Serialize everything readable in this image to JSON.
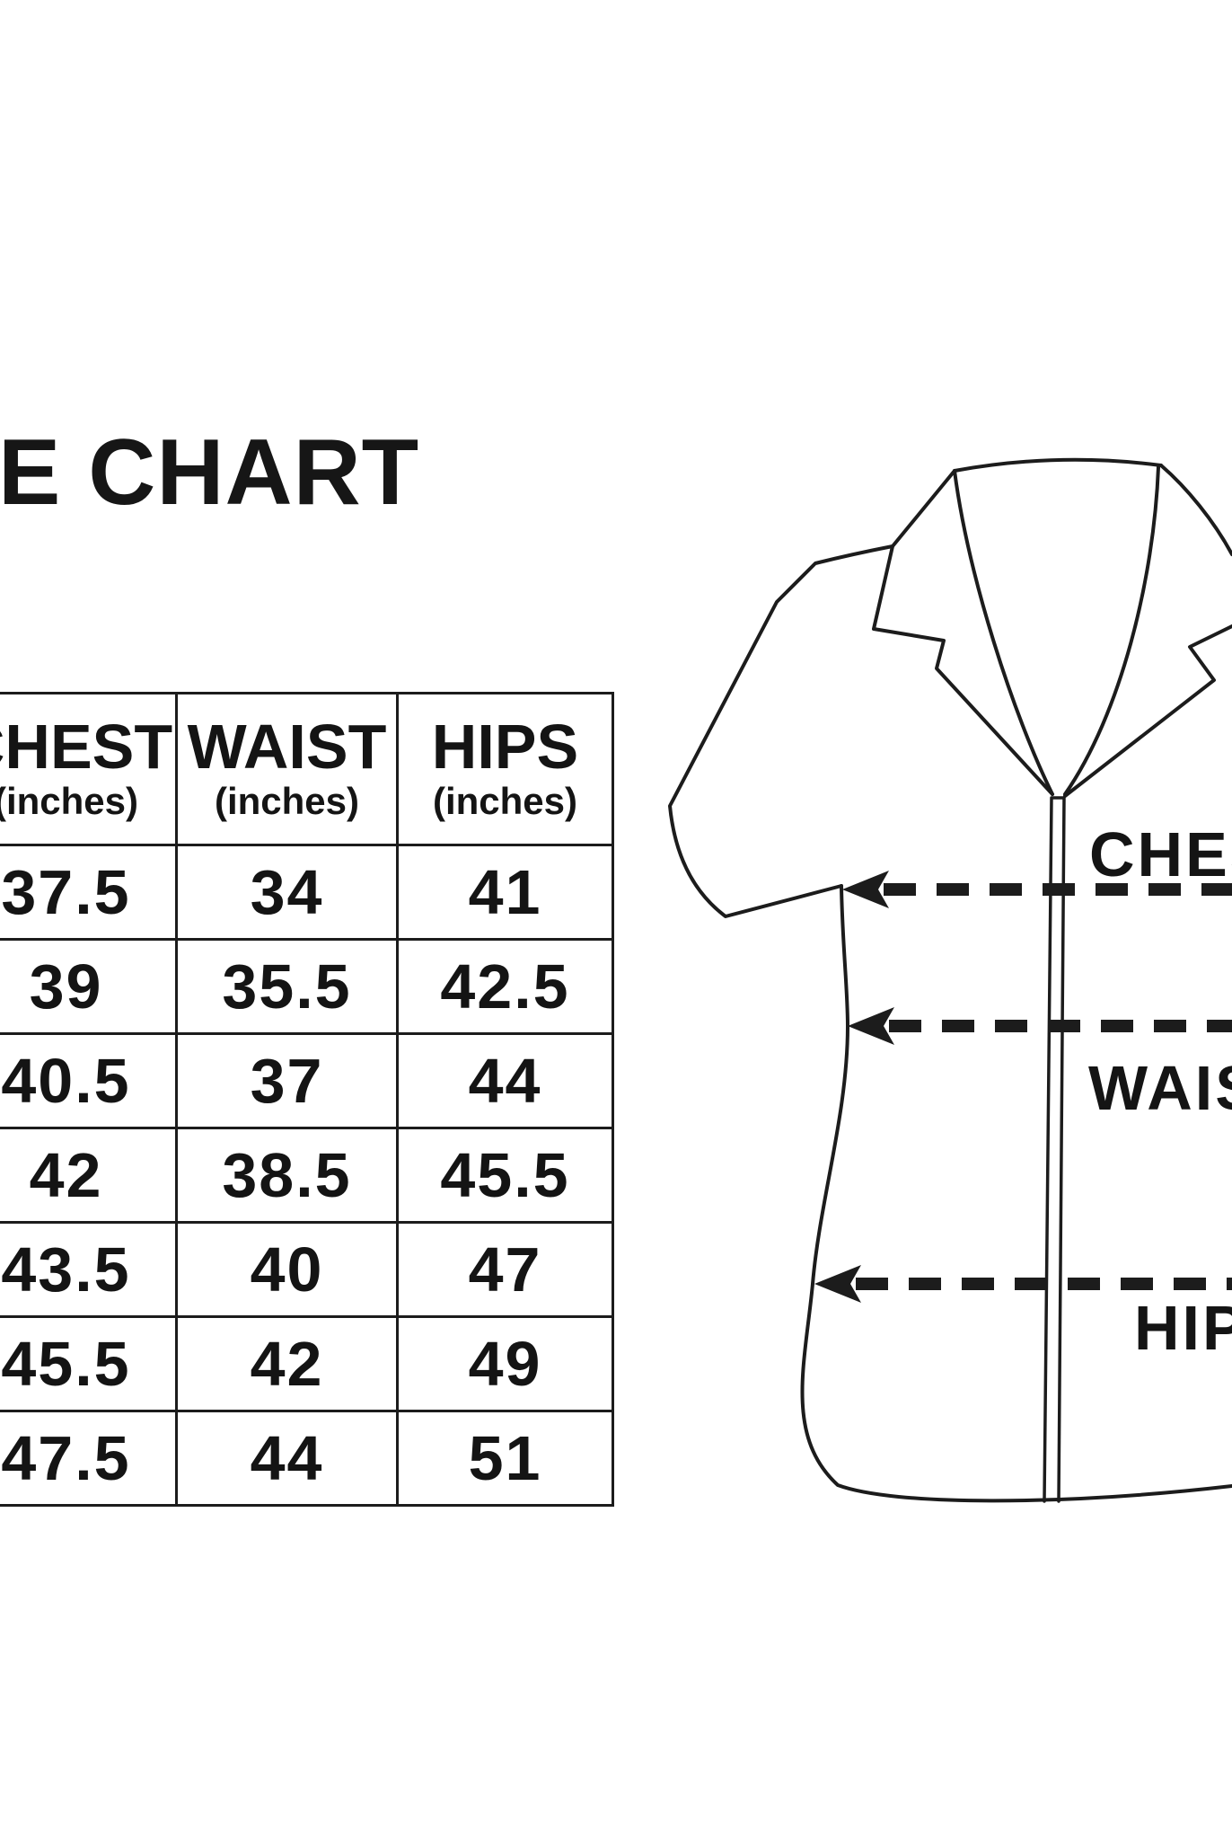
{
  "page": {
    "background": "#ffffff",
    "ink": "#1c1c1c"
  },
  "title": {
    "visible_text": "E CHART"
  },
  "size_table": {
    "columns": [
      {
        "name": "CHEST",
        "unit": "(inches)"
      },
      {
        "name": "WAIST",
        "unit": "(inches)"
      },
      {
        "name": "HIPS",
        "unit": "(inches)"
      }
    ],
    "rows": [
      [
        "37.5",
        "34",
        "41"
      ],
      [
        "39",
        "35.5",
        "42.5"
      ],
      [
        "40.5",
        "37",
        "44"
      ],
      [
        "42",
        "38.5",
        "45.5"
      ],
      [
        "43.5",
        "40",
        "47"
      ],
      [
        "45.5",
        "42",
        "49"
      ],
      [
        "47.5",
        "44",
        "51"
      ]
    ]
  },
  "diagram": {
    "labels": {
      "chest": "CHEST",
      "waist": "WAIST",
      "hips": "HIPS"
    }
  },
  "chart_data": {
    "type": "table",
    "title": "E CHART (size chart, left edge cropped)",
    "columns": [
      "CHEST (inches)",
      "WAIST (inches)",
      "HIPS (inches)"
    ],
    "rows": [
      [
        37.5,
        34,
        41
      ],
      [
        39,
        35.5,
        42.5
      ],
      [
        40.5,
        37,
        44
      ],
      [
        42,
        38.5,
        45.5
      ],
      [
        43.5,
        40,
        47
      ],
      [
        45.5,
        42,
        49
      ],
      [
        47.5,
        44,
        51
      ]
    ],
    "notes": "Shirt illustration at right with dashed arrows marking chest, waist and hip measurement lines; labels cropped at right edge"
  }
}
